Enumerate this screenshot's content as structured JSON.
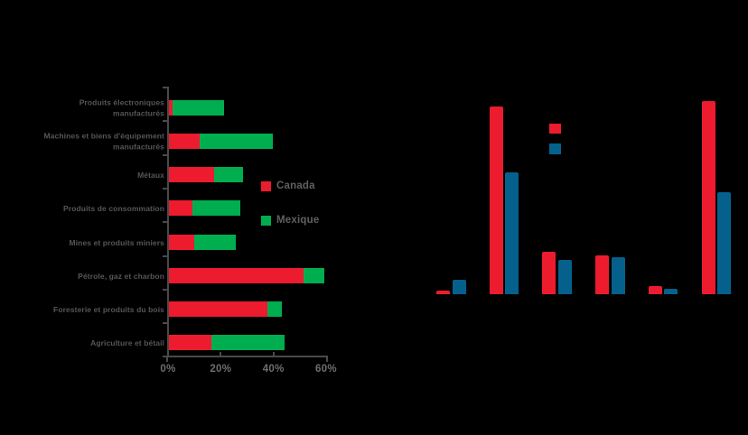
{
  "page": {
    "background": "#000000"
  },
  "colors": {
    "canada_red": "#ed1b2e",
    "mexique_green": "#00ae4f",
    "right_blue": "#05618c",
    "axis_gray": "#4a4a4a",
    "label_gray": "#55565a"
  },
  "chart_data": [
    {
      "id": "left-stacked-bar",
      "type": "bar",
      "orientation": "horizontal",
      "stacked": true,
      "title": "",
      "unit": "%",
      "xlim": [
        0,
        60
      ],
      "grid": false,
      "legend_position": "right-middle",
      "categories": [
        "Produits électroniques\nmanufacturés",
        "Machines et biens d'équipement\nmanufacturés",
        "Métaux",
        "Produits de consommation",
        "Mines et produits miniers",
        "Pétrole, gaz et charbon",
        "Foresterie et produits du bois",
        "Agriculture et bétail"
      ],
      "series": [
        {
          "name": "Canada",
          "color": "#ed1b2e",
          "values": [
            1.5,
            11.5,
            17,
            9,
            9.5,
            51,
            37.5,
            16
          ]
        },
        {
          "name": "Mexique",
          "color": "#00ae4f",
          "values": [
            19.5,
            28,
            11,
            18,
            16,
            8,
            5.5,
            28
          ]
        }
      ],
      "x_ticks": [
        {
          "value": 0,
          "label": "0%"
        },
        {
          "value": 20,
          "label": "20%"
        },
        {
          "value": 40,
          "label": "40%"
        },
        {
          "value": 60,
          "label": "60%"
        }
      ]
    },
    {
      "id": "right-grouped-bar",
      "type": "bar",
      "orientation": "vertical",
      "grouped": true,
      "title": "",
      "note": "Axis lines, tick labels, category labels and legend text are not visible (rendered black on black); only bars and two legend swatches show. Values are relative heights, tallest bar = 100.",
      "axis_labels_visible": false,
      "ylim": [
        0,
        100
      ],
      "grid": false,
      "categories": [
        "",
        "",
        "",
        "",
        "",
        ""
      ],
      "series": [
        {
          "name": "",
          "color": "#ed1b2e",
          "values": [
            2,
            97,
            22,
            20,
            4,
            100
          ]
        },
        {
          "name": "",
          "color": "#05618c",
          "values": [
            7.5,
            63,
            18,
            19,
            3,
            53
          ]
        }
      ]
    }
  ]
}
